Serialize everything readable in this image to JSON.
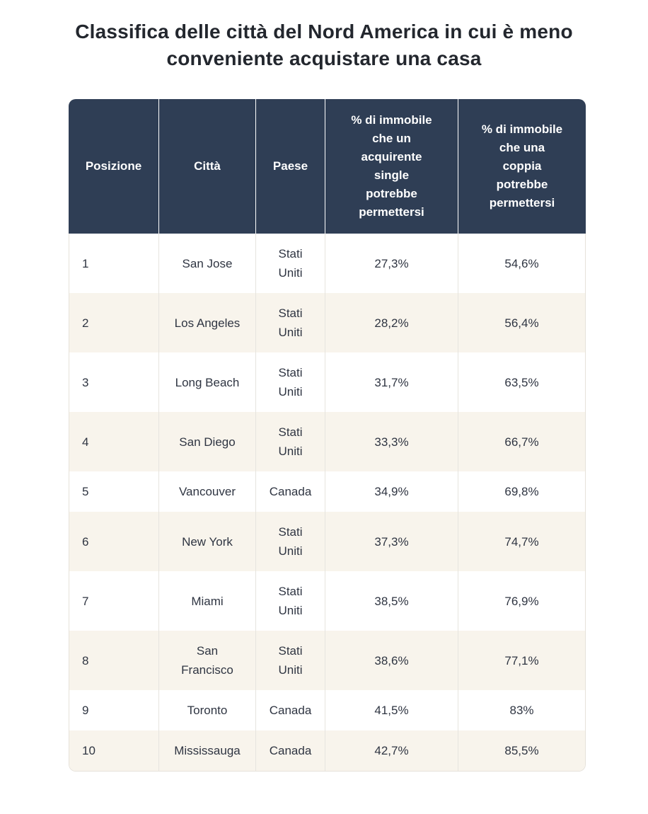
{
  "title": "Classifica delle città del Nord America in cui è meno\nconveniente acquistare una casa",
  "table": {
    "columns": [
      {
        "key": "posizione",
        "label": "Posizione"
      },
      {
        "key": "citta",
        "label": "Città"
      },
      {
        "key": "paese",
        "label": "Paese"
      },
      {
        "key": "single",
        "label": "% di immobile\nche un\nacquirente\nsingle\npotrebbe\npermettersi"
      },
      {
        "key": "coppia",
        "label": "% di immobile\nche una\ncoppia\npotrebbe\npermettersi"
      }
    ],
    "rows": [
      {
        "posizione": "1",
        "citta": "San Jose",
        "paese": "Stati\nUniti",
        "single": "27,3%",
        "coppia": "54,6%"
      },
      {
        "posizione": "2",
        "citta": "Los Angeles",
        "paese": "Stati\nUniti",
        "single": "28,2%",
        "coppia": "56,4%"
      },
      {
        "posizione": "3",
        "citta": "Long Beach",
        "paese": "Stati\nUniti",
        "single": "31,7%",
        "coppia": "63,5%"
      },
      {
        "posizione": "4",
        "citta": "San Diego",
        "paese": "Stati\nUniti",
        "single": "33,3%",
        "coppia": "66,7%"
      },
      {
        "posizione": "5",
        "citta": "Vancouver",
        "paese": "Canada",
        "single": "34,9%",
        "coppia": "69,8%"
      },
      {
        "posizione": "6",
        "citta": "New York",
        "paese": "Stati\nUniti",
        "single": "37,3%",
        "coppia": "74,7%"
      },
      {
        "posizione": "7",
        "citta": "Miami",
        "paese": "Stati\nUniti",
        "single": "38,5%",
        "coppia": "76,9%"
      },
      {
        "posizione": "8",
        "citta": "San\nFrancisco",
        "paese": "Stati\nUniti",
        "single": "38,6%",
        "coppia": "77,1%"
      },
      {
        "posizione": "9",
        "citta": "Toronto",
        "paese": "Canada",
        "single": "41,5%",
        "coppia": "83%"
      },
      {
        "posizione": "10",
        "citta": "Mississauga",
        "paese": "Canada",
        "single": "42,7%",
        "coppia": "85,5%"
      }
    ]
  },
  "chart_data": {
    "type": "table",
    "title": "Classifica delle città del Nord America in cui è meno conveniente acquistare una casa",
    "columns": [
      "Posizione",
      "Città",
      "Paese",
      "% di immobile che un acquirente single potrebbe permettersi",
      "% di immobile che una coppia potrebbe permettersi"
    ],
    "rows": [
      [
        "1",
        "San Jose",
        "Stati Uniti",
        "27,3%",
        "54,6%"
      ],
      [
        "2",
        "Los Angeles",
        "Stati Uniti",
        "28,2%",
        "56,4%"
      ],
      [
        "3",
        "Long Beach",
        "Stati Uniti",
        "31,7%",
        "63,5%"
      ],
      [
        "4",
        "San Diego",
        "Stati Uniti",
        "33,3%",
        "66,7%"
      ],
      [
        "5",
        "Vancouver",
        "Canada",
        "34,9%",
        "69,8%"
      ],
      [
        "6",
        "New York",
        "Stati Uniti",
        "37,3%",
        "74,7%"
      ],
      [
        "7",
        "Miami",
        "Stati Uniti",
        "38,5%",
        "76,9%"
      ],
      [
        "8",
        "San Francisco",
        "Stati Uniti",
        "38,6%",
        "77,1%"
      ],
      [
        "9",
        "Toronto",
        "Canada",
        "41,5%",
        "83%"
      ],
      [
        "10",
        "Mississauga",
        "Canada",
        "42,7%",
        "85,5%"
      ]
    ],
    "series": [
      {
        "name": "% immobile acquirente single",
        "values": [
          27.3,
          28.2,
          31.7,
          33.3,
          34.9,
          37.3,
          38.5,
          38.6,
          41.5,
          42.7
        ]
      },
      {
        "name": "% immobile coppia",
        "values": [
          54.6,
          56.4,
          63.5,
          66.7,
          69.8,
          74.7,
          76.9,
          77.1,
          83.0,
          85.5
        ]
      }
    ]
  },
  "colors": {
    "header_bg": "#2f3e55",
    "header_text": "#ffffff",
    "row_bg": "#ffffff",
    "row_alt_bg": "#f8f4ec",
    "body_text": "#2f3542",
    "divider": "#e6e4df",
    "title_text": "#23272e",
    "table_border": "#e6e2da"
  }
}
